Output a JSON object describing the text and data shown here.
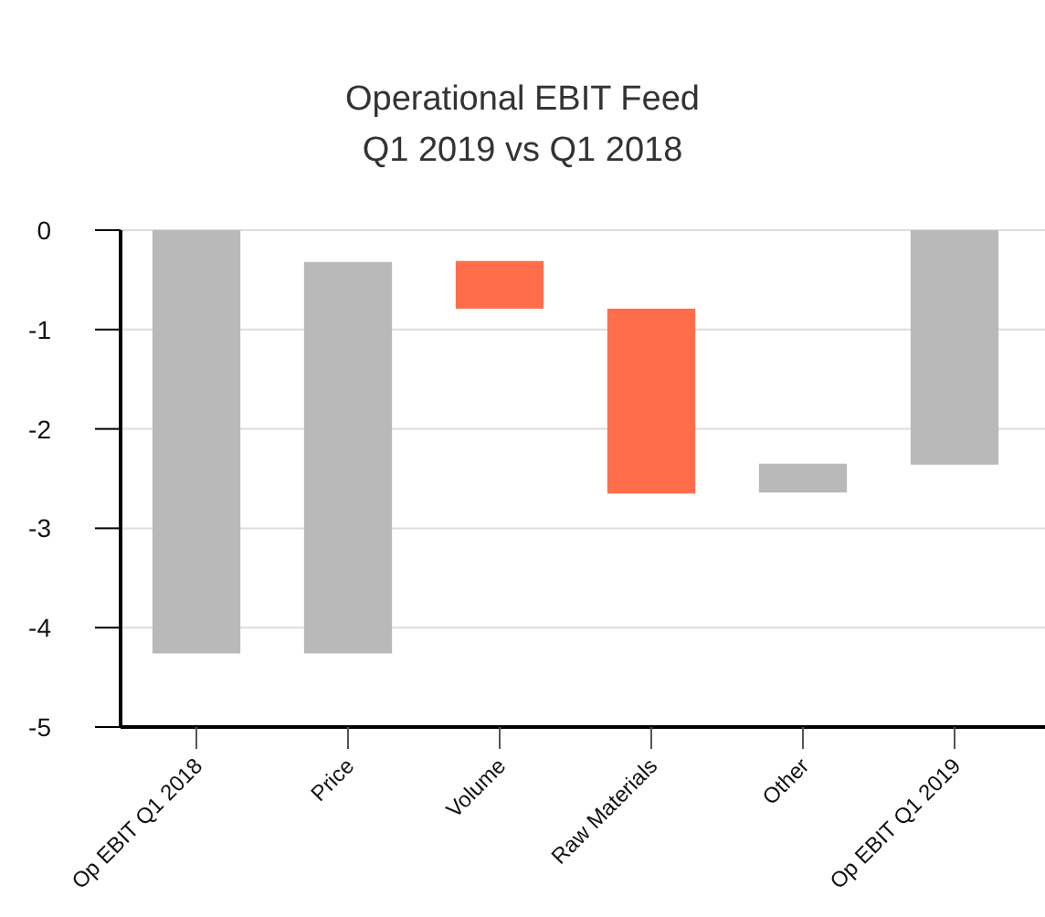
{
  "chart_data": {
    "type": "bar",
    "title": "Operational EBIT Feed\nQ1 2019 vs Q1 2018",
    "categories": [
      "Op EBIT Q1 2018",
      "Price",
      "Volume",
      "Raw Materials",
      "Other",
      "Op EBIT Q1 2019"
    ],
    "values": [
      -4.26,
      -3.94,
      -0.48,
      -1.86,
      -0.29,
      -2.36
    ],
    "base": [
      0,
      -0.32,
      -0.31,
      -0.79,
      -2.35,
      0
    ],
    "colors": [
      "#b9b9b9",
      "#b9b9b9",
      "#ff6d4a",
      "#ff6d4a",
      "#b9b9b9",
      "#b9b9b9"
    ],
    "ylim": [
      -5,
      0
    ],
    "yticks": [
      -5,
      -4,
      -3,
      -2,
      -1,
      0
    ],
    "grid": "y"
  }
}
